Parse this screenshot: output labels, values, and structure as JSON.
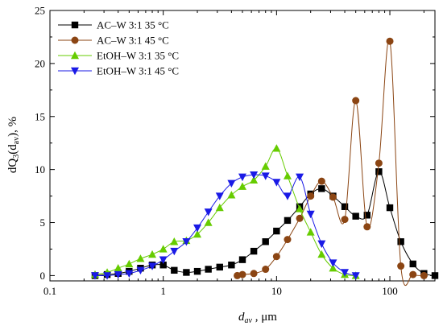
{
  "chart_data": {
    "type": "line",
    "xscale": "log",
    "xlim": [
      0.1,
      250
    ],
    "ylim": [
      -0.5,
      25
    ],
    "x_ticks": [
      0.1,
      1,
      10,
      100
    ],
    "x_tick_labels": [
      "0.1",
      "1",
      "10",
      "100"
    ],
    "y_ticks": [
      0,
      5,
      10,
      15,
      20,
      25
    ],
    "y_tick_labels": [
      "0",
      "5",
      "10",
      "15",
      "20",
      "25"
    ],
    "xlabel": {
      "main": "d",
      "sub": "av",
      "rest": " , μm"
    },
    "ylabel": {
      "p1": "dQ",
      "s1": "3",
      "p2": "(d",
      "s2": "av",
      "p3": "), %"
    },
    "grid": false,
    "legend": "top-left",
    "series": [
      {
        "name": "AC–W 3:1 35 °C",
        "color": "#000000",
        "marker": "square",
        "x": [
          0.25,
          0.32,
          0.4,
          0.5,
          0.63,
          0.8,
          1.0,
          1.25,
          1.6,
          2.0,
          2.5,
          3.15,
          4.0,
          5.0,
          6.3,
          8.0,
          10,
          12.5,
          16,
          20,
          25,
          31.5,
          40,
          50,
          63,
          80,
          100,
          125,
          160,
          200,
          250
        ],
        "values": [
          0.0,
          0.1,
          0.2,
          0.4,
          0.7,
          1.0,
          1.0,
          0.5,
          0.3,
          0.4,
          0.6,
          0.8,
          1.0,
          1.5,
          2.3,
          3.2,
          4.2,
          5.2,
          6.5,
          7.7,
          8.2,
          7.5,
          6.5,
          5.6,
          5.7,
          9.8,
          6.4,
          3.2,
          1.1,
          0.2,
          0.0
        ]
      },
      {
        "name": "AC–W 3:1 45 °C",
        "color": "#8B4513",
        "marker": "circle",
        "x": [
          4.5,
          5.0,
          6.3,
          8.0,
          10,
          12.5,
          16,
          20,
          25,
          31.5,
          40,
          50,
          63,
          80,
          100,
          125,
          160,
          200
        ],
        "values": [
          0.0,
          0.1,
          0.2,
          0.6,
          1.8,
          3.4,
          5.4,
          7.5,
          8.9,
          7.4,
          5.3,
          16.5,
          4.6,
          10.6,
          22.1,
          0.9,
          0.1,
          0.0
        ]
      },
      {
        "name": "EtOH–W 3:1 35 °C",
        "color": "#66CC00",
        "marker": "triangle-up",
        "x": [
          0.25,
          0.32,
          0.4,
          0.5,
          0.63,
          0.8,
          1.0,
          1.25,
          1.6,
          2.0,
          2.5,
          3.15,
          4.0,
          5.0,
          6.3,
          8.0,
          10,
          12.5,
          16,
          20,
          25,
          31.5,
          40,
          50
        ],
        "values": [
          0.1,
          0.3,
          0.7,
          1.1,
          1.6,
          2.0,
          2.5,
          3.2,
          3.3,
          3.9,
          5.0,
          6.4,
          7.6,
          8.4,
          9.0,
          10.3,
          12.0,
          9.4,
          6.3,
          4.1,
          2.0,
          0.7,
          0.1,
          0.0
        ]
      },
      {
        "name": "EtOH–W 3:1 45 °C",
        "color": "#1A1AE6",
        "marker": "triangle-down",
        "x": [
          0.25,
          0.32,
          0.4,
          0.5,
          0.63,
          0.8,
          1.0,
          1.25,
          1.6,
          2.0,
          2.5,
          3.15,
          4.0,
          5.0,
          6.3,
          8.0,
          10,
          12.5,
          16,
          20,
          25,
          31.5,
          40,
          50
        ],
        "values": [
          0.0,
          0.0,
          0.1,
          0.2,
          0.5,
          0.9,
          1.5,
          2.3,
          3.2,
          4.5,
          6.0,
          7.5,
          8.7,
          9.3,
          9.5,
          9.4,
          8.8,
          7.5,
          9.3,
          5.8,
          3.0,
          1.2,
          0.3,
          0.0
        ]
      }
    ]
  }
}
